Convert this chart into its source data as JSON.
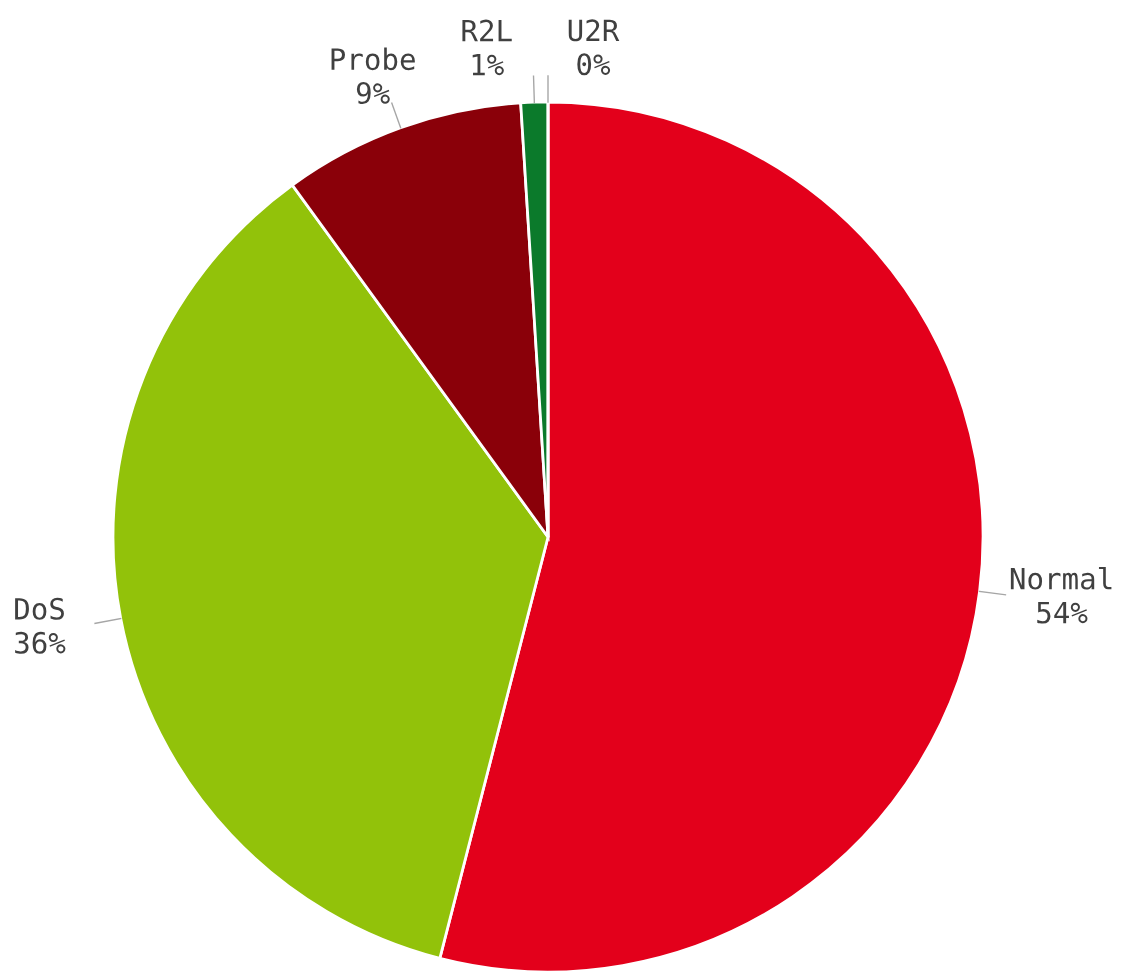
{
  "chart_data": {
    "type": "pie",
    "categories": [
      "Normal",
      "DoS",
      "Probe",
      "R2L",
      "U2R"
    ],
    "values": [
      54,
      36,
      9,
      1,
      0
    ],
    "value_labels": [
      "54%",
      "36%",
      "9%",
      "1%",
      "0%"
    ],
    "colors": [
      "#e3001b",
      "#92c20a",
      "#8a0009",
      "#0b7a2b",
      "#4a7fb0"
    ]
  }
}
